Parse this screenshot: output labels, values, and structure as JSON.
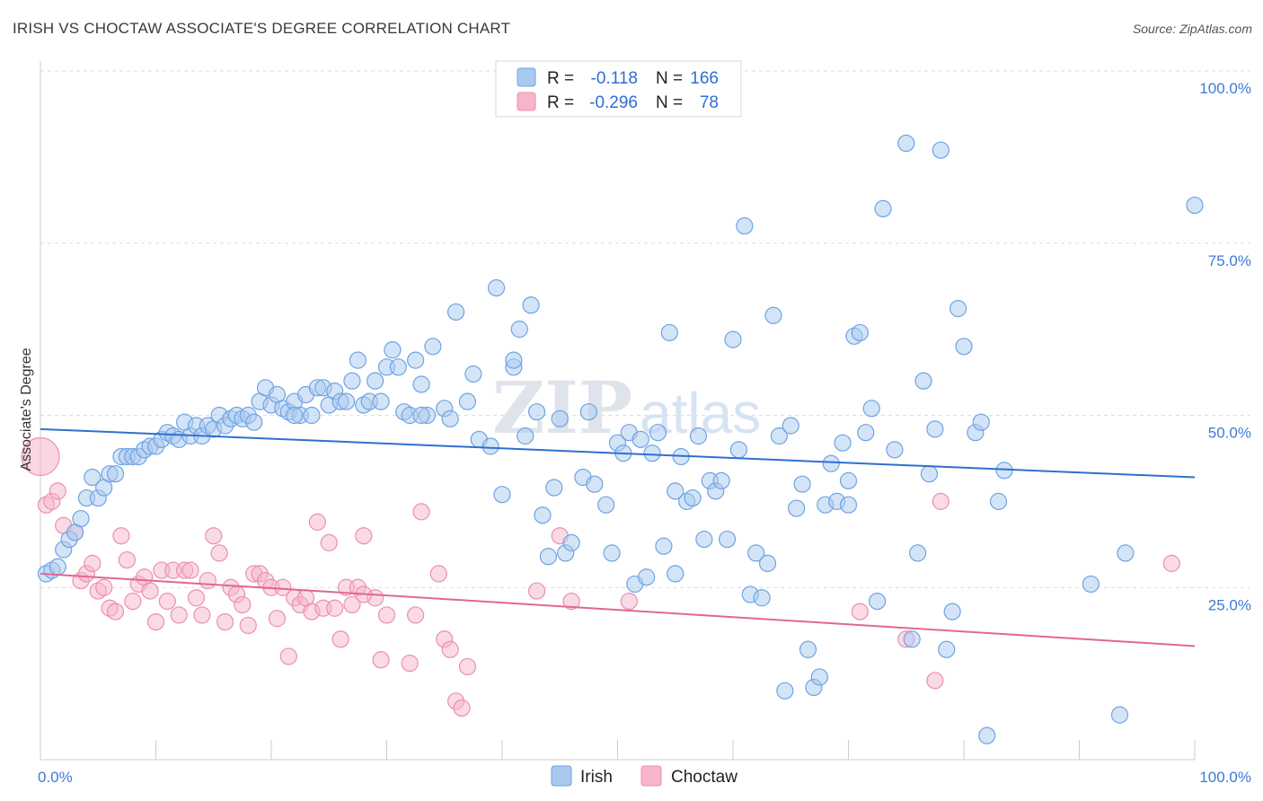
{
  "title": "IRISH VS CHOCTAW ASSOCIATE'S DEGREE CORRELATION CHART",
  "source": "Source: ZipAtlas.com",
  "watermark": {
    "zip": "ZIP",
    "atlas": "atlas"
  },
  "colors": {
    "irish_fill": "#a9c9f0",
    "irish_stroke": "#6ea3e3",
    "irish_line": "#2f6fd0",
    "choctaw_fill": "#f6b5c9",
    "choctaw_stroke": "#ec8fae",
    "choctaw_line": "#e0688f",
    "grid": "#dddddd",
    "tick_text": "#3d7bd6"
  },
  "legend": {
    "rows": [
      {
        "r_label": "R =",
        "r_value": "-0.118",
        "n_label": "N =",
        "n_value": "166"
      },
      {
        "r_label": "R =",
        "r_value": "-0.296",
        "n_label": "N =",
        "n_value": "78"
      }
    ]
  },
  "chart_data": {
    "type": "scatter",
    "xlabel": "",
    "ylabel": "Associate's Degree",
    "xlim": [
      0,
      100
    ],
    "ylim": [
      0,
      100
    ],
    "x_tick_labels": [
      {
        "value": 0,
        "label": "0.0%"
      },
      {
        "value": 100,
        "label": "100.0%"
      }
    ],
    "y_tick_labels": [
      {
        "value": 25,
        "label": "25.0%"
      },
      {
        "value": 50,
        "label": "50.0%"
      },
      {
        "value": 75,
        "label": "75.0%"
      },
      {
        "value": 100,
        "label": "100.0%"
      }
    ],
    "grid": true,
    "legend_position": "top-center",
    "series": [
      {
        "name": "Irish",
        "trend": {
          "x": [
            0,
            100
          ],
          "y": [
            48,
            41
          ]
        },
        "points": [
          [
            0.5,
            27
          ],
          [
            1,
            27.5
          ],
          [
            1.5,
            28
          ],
          [
            2,
            30.5
          ],
          [
            2.5,
            32
          ],
          [
            3,
            33
          ],
          [
            3.5,
            35
          ],
          [
            4,
            38
          ],
          [
            4.5,
            41
          ],
          [
            5,
            38
          ],
          [
            5.5,
            39.5
          ],
          [
            6,
            41.5
          ],
          [
            6.5,
            41.5
          ],
          [
            7,
            44
          ],
          [
            7.5,
            44
          ],
          [
            8,
            44
          ],
          [
            8.5,
            44
          ],
          [
            9,
            45
          ],
          [
            9.5,
            45.5
          ],
          [
            10,
            45.5
          ],
          [
            10.5,
            46.5
          ],
          [
            11,
            47.5
          ],
          [
            11.5,
            47
          ],
          [
            12,
            46.5
          ],
          [
            12.5,
            49
          ],
          [
            13,
            47
          ],
          [
            13.5,
            48.5
          ],
          [
            14,
            47
          ],
          [
            14.5,
            48.5
          ],
          [
            15,
            48
          ],
          [
            15.5,
            50
          ],
          [
            16,
            48.5
          ],
          [
            16.5,
            49.5
          ],
          [
            17,
            50
          ],
          [
            17.5,
            49.5
          ],
          [
            18,
            50
          ],
          [
            18.5,
            49
          ],
          [
            19,
            52
          ],
          [
            19.5,
            54
          ],
          [
            20,
            51.5
          ],
          [
            20.5,
            53
          ],
          [
            21,
            51
          ],
          [
            21.5,
            50.5
          ],
          [
            22,
            52
          ],
          [
            22.5,
            50
          ],
          [
            23,
            53
          ],
          [
            23.5,
            50
          ],
          [
            24,
            54
          ],
          [
            24.5,
            54
          ],
          [
            25,
            51.5
          ],
          [
            25.5,
            53.5
          ],
          [
            26,
            52
          ],
          [
            26.5,
            52
          ],
          [
            27,
            55
          ],
          [
            27.5,
            58
          ],
          [
            28,
            51.5
          ],
          [
            28.5,
            52
          ],
          [
            29,
            55
          ],
          [
            29.5,
            52
          ],
          [
            30,
            57
          ],
          [
            30.5,
            59.5
          ],
          [
            31,
            57
          ],
          [
            31.5,
            50.5
          ],
          [
            32,
            50
          ],
          [
            32.5,
            58
          ],
          [
            33,
            54.5
          ],
          [
            33.5,
            50
          ],
          [
            34,
            60
          ],
          [
            35,
            51
          ],
          [
            35.5,
            49.5
          ],
          [
            36,
            65
          ],
          [
            37,
            52
          ],
          [
            37.5,
            56
          ],
          [
            38,
            46.5
          ],
          [
            39,
            45.5
          ],
          [
            39.5,
            68.5
          ],
          [
            40,
            38.5
          ],
          [
            41,
            57
          ],
          [
            41.5,
            62.5
          ],
          [
            42,
            47
          ],
          [
            42.5,
            66
          ],
          [
            43,
            50.5
          ],
          [
            43.5,
            35.5
          ],
          [
            44,
            29.5
          ],
          [
            44.5,
            39.5
          ],
          [
            45,
            49.5
          ],
          [
            45.5,
            30
          ],
          [
            46,
            31.5
          ],
          [
            47,
            41
          ],
          [
            47.5,
            50.5
          ],
          [
            48,
            40
          ],
          [
            49,
            37
          ],
          [
            49.5,
            30
          ],
          [
            50,
            46
          ],
          [
            50.5,
            44.5
          ],
          [
            51,
            47.5
          ],
          [
            51.5,
            25.5
          ],
          [
            52,
            46.5
          ],
          [
            52.5,
            26.5
          ],
          [
            53,
            44.5
          ],
          [
            53.5,
            47.5
          ],
          [
            54,
            31
          ],
          [
            54.5,
            62
          ],
          [
            55,
            27
          ],
          [
            55.5,
            44
          ],
          [
            56,
            37.5
          ],
          [
            56.5,
            38
          ],
          [
            57,
            47
          ],
          [
            57.5,
            32
          ],
          [
            58,
            40.5
          ],
          [
            58.5,
            39
          ],
          [
            59,
            40.5
          ],
          [
            59.5,
            32
          ],
          [
            60,
            61
          ],
          [
            60.5,
            45
          ],
          [
            61,
            77.5
          ],
          [
            61.5,
            24
          ],
          [
            62,
            30
          ],
          [
            62.5,
            23.5
          ],
          [
            63,
            28.5
          ],
          [
            63.5,
            64.5
          ],
          [
            64,
            47
          ],
          [
            64.5,
            10
          ],
          [
            65,
            48.5
          ],
          [
            65.5,
            36.5
          ],
          [
            66,
            40
          ],
          [
            66.5,
            16
          ],
          [
            67,
            10.5
          ],
          [
            67.5,
            12
          ],
          [
            68,
            37
          ],
          [
            68.5,
            43
          ],
          [
            69,
            37.5
          ],
          [
            69.5,
            46
          ],
          [
            70,
            40.5
          ],
          [
            70.5,
            61.5
          ],
          [
            71,
            62
          ],
          [
            71.5,
            47.5
          ],
          [
            72,
            51
          ],
          [
            72.5,
            23
          ],
          [
            73,
            80
          ],
          [
            74,
            45
          ],
          [
            75,
            89.5
          ],
          [
            75.5,
            17.5
          ],
          [
            76,
            30
          ],
          [
            76.5,
            55
          ],
          [
            77,
            41.5
          ],
          [
            77.5,
            48
          ],
          [
            78,
            88.5
          ],
          [
            78.5,
            16
          ],
          [
            79,
            21.5
          ],
          [
            79.5,
            65.5
          ],
          [
            80,
            60
          ],
          [
            81,
            47.5
          ],
          [
            81.5,
            49
          ],
          [
            82,
            3.5
          ],
          [
            83,
            37.5
          ],
          [
            83.5,
            42
          ],
          [
            91,
            25.5
          ],
          [
            93.5,
            6.5
          ],
          [
            94,
            30
          ],
          [
            100,
            80.5
          ],
          [
            70,
            37
          ],
          [
            55,
            39
          ],
          [
            41,
            58
          ],
          [
            33,
            50
          ],
          [
            22,
            50
          ]
        ]
      },
      {
        "name": "Choctaw",
        "trend": {
          "x": [
            0,
            100
          ],
          "y": [
            27,
            16.5
          ]
        },
        "points": [
          [
            0,
            44
          ],
          [
            0.5,
            37
          ],
          [
            1,
            37.5
          ],
          [
            1.5,
            39
          ],
          [
            2,
            34
          ],
          [
            3,
            33
          ],
          [
            3.5,
            26
          ],
          [
            4,
            27
          ],
          [
            4.5,
            28.5
          ],
          [
            5,
            24.5
          ],
          [
            5.5,
            25
          ],
          [
            6,
            22
          ],
          [
            6.5,
            21.5
          ],
          [
            7,
            32.5
          ],
          [
            7.5,
            29
          ],
          [
            8,
            23
          ],
          [
            8.5,
            25.5
          ],
          [
            9,
            26.5
          ],
          [
            9.5,
            24.5
          ],
          [
            10,
            20
          ],
          [
            10.5,
            27.5
          ],
          [
            11,
            23
          ],
          [
            11.5,
            27.5
          ],
          [
            12,
            21
          ],
          [
            12.5,
            27.5
          ],
          [
            13,
            27.5
          ],
          [
            13.5,
            23.5
          ],
          [
            14,
            21
          ],
          [
            14.5,
            26
          ],
          [
            15,
            32.5
          ],
          [
            15.5,
            30
          ],
          [
            16,
            20
          ],
          [
            16.5,
            25
          ],
          [
            17,
            24
          ],
          [
            17.5,
            22.5
          ],
          [
            18,
            19.5
          ],
          [
            18.5,
            27
          ],
          [
            19,
            27
          ],
          [
            19.5,
            26
          ],
          [
            20,
            25
          ],
          [
            20.5,
            20.5
          ],
          [
            21,
            25
          ],
          [
            21.5,
            15
          ],
          [
            22,
            23.5
          ],
          [
            22.5,
            22.5
          ],
          [
            23,
            23.5
          ],
          [
            23.5,
            21.5
          ],
          [
            24,
            34.5
          ],
          [
            24.5,
            22
          ],
          [
            25,
            31.5
          ],
          [
            25.5,
            22
          ],
          [
            26,
            17.5
          ],
          [
            26.5,
            25
          ],
          [
            27,
            22.5
          ],
          [
            27.5,
            25
          ],
          [
            28,
            32.5
          ],
          [
            29,
            23.5
          ],
          [
            29.5,
            14.5
          ],
          [
            30,
            21
          ],
          [
            32,
            14
          ],
          [
            32.5,
            21
          ],
          [
            33,
            36
          ],
          [
            34.5,
            27
          ],
          [
            35,
            17.5
          ],
          [
            35.5,
            16
          ],
          [
            36,
            8.5
          ],
          [
            36.5,
            7.5
          ],
          [
            37,
            13.5
          ],
          [
            43,
            24.5
          ],
          [
            45,
            32.5
          ],
          [
            46,
            23
          ],
          [
            51,
            23
          ],
          [
            71,
            21.5
          ],
          [
            75,
            17.5
          ],
          [
            77.5,
            11.5
          ],
          [
            78,
            37.5
          ],
          [
            98,
            28.5
          ],
          [
            28,
            24
          ]
        ]
      }
    ]
  },
  "bottom_legend": {
    "items": [
      "Irish",
      "Choctaw"
    ]
  }
}
